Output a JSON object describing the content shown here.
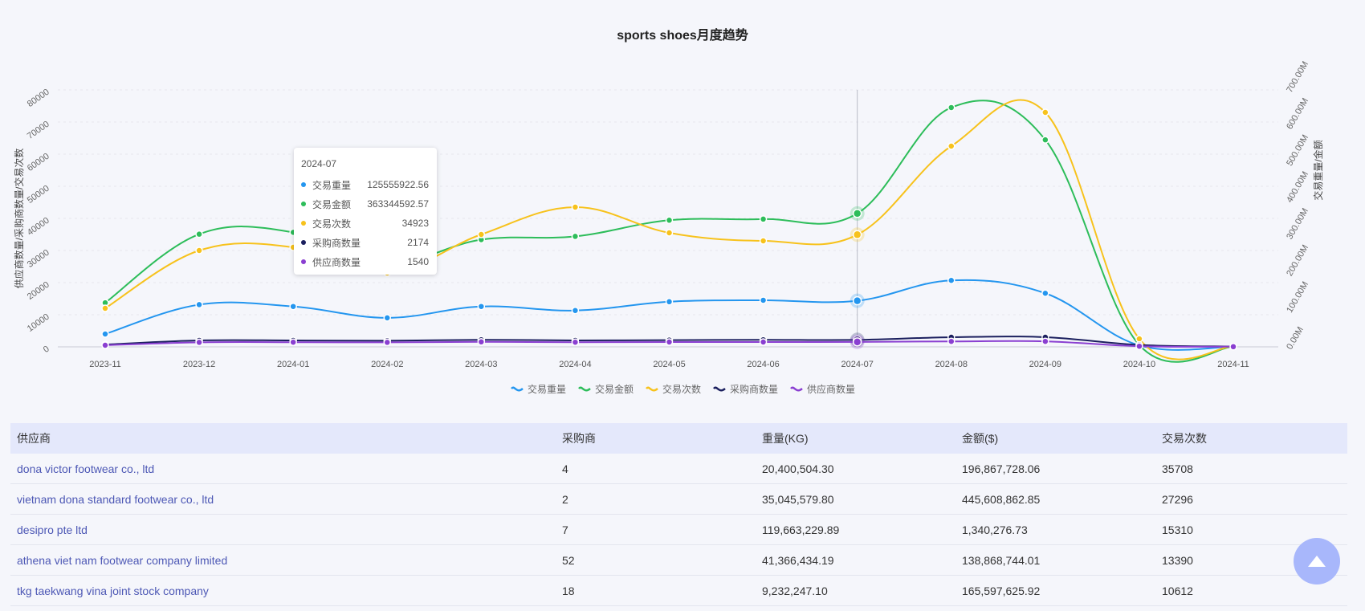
{
  "title": "sports shoes月度趋势",
  "chart_data": {
    "type": "line",
    "title": "sports shoes月度趋势",
    "x": [
      "2023-11",
      "2023-12",
      "2024-01",
      "2024-02",
      "2024-03",
      "2024-04",
      "2024-05",
      "2024-06",
      "2024-07",
      "2024-08",
      "2024-09",
      "2024-10",
      "2024-11"
    ],
    "ylabel_left": "供应商数量/采购商数量/交易次数",
    "ylabel_right": "交易重量/金额",
    "ylim_left": [
      0,
      80000
    ],
    "ylim_right": [
      0,
      700000000
    ],
    "yticks_left": [
      "0",
      "10000",
      "20000",
      "30000",
      "40000",
      "50000",
      "60000",
      "70000",
      "80000"
    ],
    "yticks_right": [
      "0.00M",
      "100.00M",
      "200.00M",
      "300.00M",
      "400.00M",
      "500.00M",
      "600.00M",
      "700.00M"
    ],
    "grid": true,
    "legend_position": "bottom",
    "series": [
      {
        "name": "交易重量",
        "axis": "right",
        "color": "#2496ef",
        "values": [
          35000000,
          115000000,
          110000000,
          79000000,
          110000000,
          99000000,
          123000000,
          127000000,
          125555922.56,
          181000000,
          146000000,
          4000000,
          500000
        ]
      },
      {
        "name": "交易金额",
        "axis": "right",
        "color": "#2dbd5a",
        "values": [
          120000000,
          307000000,
          312000000,
          228000000,
          292000000,
          301000000,
          345000000,
          348000000,
          363344592.57,
          652000000,
          564000000,
          5000000,
          500000
        ]
      },
      {
        "name": "交易次数",
        "axis": "left",
        "color": "#f7c21c",
        "values": [
          12000,
          30000,
          31000,
          23000,
          35000,
          43500,
          35500,
          33000,
          34923,
          62500,
          73000,
          2500,
          100
        ]
      },
      {
        "name": "采购商数量",
        "axis": "left",
        "color": "#1b1f5e",
        "values": [
          700,
          2000,
          2000,
          1900,
          2200,
          2000,
          2100,
          2200,
          2174,
          3000,
          3000,
          600,
          100
        ]
      },
      {
        "name": "供应商数量",
        "axis": "left",
        "color": "#8a3fd1",
        "values": [
          500,
          1400,
          1450,
          1400,
          1550,
          1450,
          1500,
          1500,
          1540,
          1700,
          1700,
          200,
          50
        ]
      }
    ],
    "tooltip": {
      "title": "2024-07",
      "rows": [
        {
          "name": "交易重量",
          "value": "125555922.56",
          "color": "#2496ef"
        },
        {
          "name": "交易金额",
          "value": "363344592.57",
          "color": "#2dbd5a"
        },
        {
          "name": "交易次数",
          "value": "34923",
          "color": "#f7c21c"
        },
        {
          "name": "采购商数量",
          "value": "2174",
          "color": "#1b1f5e"
        },
        {
          "name": "供应商数量",
          "value": "1540",
          "color": "#8a3fd1"
        }
      ]
    },
    "highlight_category": "2024-07"
  },
  "table": {
    "headers": [
      "供应商",
      "采购商",
      "重量(KG)",
      "金额($)",
      "交易次数"
    ],
    "rows": [
      [
        "dona victor footwear co., ltd",
        "4",
        "20,400,504.30",
        "196,867,728.06",
        "35708"
      ],
      [
        "vietnam dona standard footwear co., ltd",
        "2",
        "35,045,579.80",
        "445,608,862.85",
        "27296"
      ],
      [
        "desipro pte ltd",
        "7",
        "119,663,229.89",
        "1,340,276.73",
        "15310"
      ],
      [
        "athena viet nam footwear company limited",
        "52",
        "41,366,434.19",
        "138,868,744.01",
        "13390"
      ],
      [
        "tkg taekwang vina joint stock company",
        "18",
        "9,232,247.10",
        "165,597,625.92",
        "10612"
      ]
    ]
  }
}
